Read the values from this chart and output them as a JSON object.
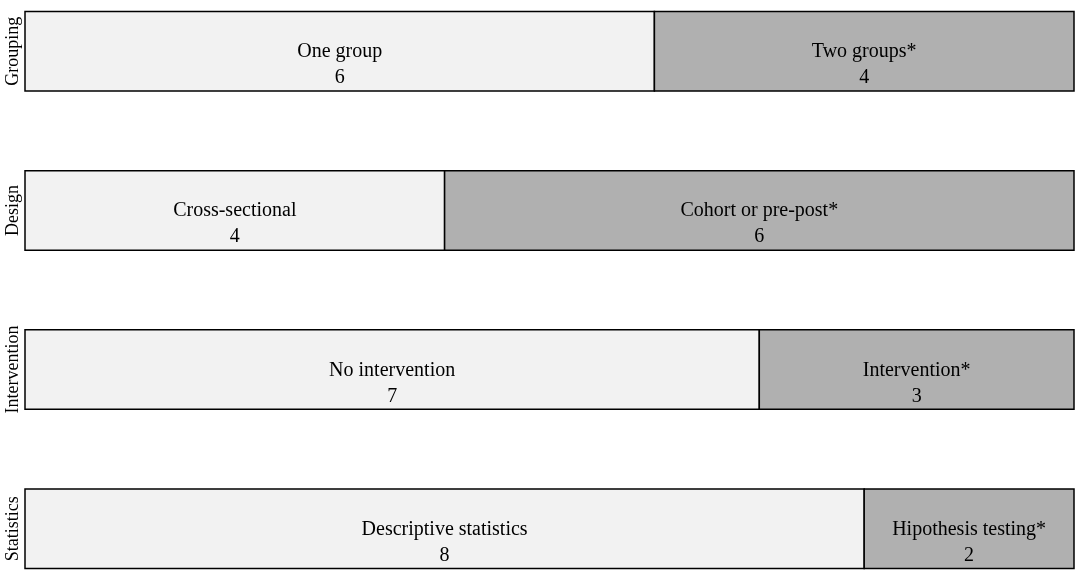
{
  "chart_data": {
    "type": "bar",
    "orientation": "horizontal",
    "stacked": true,
    "categories": [
      "Grouping",
      "Design",
      "Intervention",
      "Statistics"
    ],
    "series": [
      {
        "color": "#f2f2f2",
        "values": [
          6,
          4,
          7,
          8
        ],
        "value_labels": [
          "One group\n6",
          "Cross-sectional\n4",
          "No intervention\n7",
          "Descriptive statistics\n8"
        ]
      },
      {
        "color": "#b0b0b0",
        "values": [
          4,
          6,
          3,
          2
        ],
        "value_labels": [
          "Two groups*\n4",
          "Cohort or pre-post*\n6",
          "Intervention*\n3",
          "Hipothesis testing*\n2"
        ]
      }
    ],
    "xlim": [
      0,
      10
    ],
    "tick_labels": "y",
    "grid": false,
    "legend": false
  }
}
